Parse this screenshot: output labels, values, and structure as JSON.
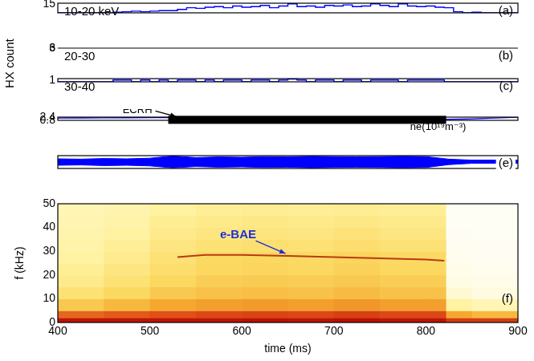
{
  "chart_data": [
    {
      "type": "line",
      "title": "10-20 keV",
      "panel_label": "(a)",
      "x": [
        400,
        410,
        420,
        430,
        440,
        450,
        460,
        470,
        480,
        490,
        500,
        510,
        520,
        530,
        540,
        550,
        560,
        570,
        580,
        590,
        600,
        610,
        620,
        630,
        640,
        650,
        660,
        670,
        680,
        690,
        700,
        710,
        720,
        730,
        740,
        750,
        760,
        770,
        780,
        790,
        800,
        810,
        820,
        830,
        840,
        850,
        860,
        870,
        880,
        890,
        900
      ],
      "series": [
        {
          "color": "#0000ff",
          "values": [
            0,
            0,
            0,
            0,
            0,
            0,
            1,
            2,
            3,
            2,
            3,
            4,
            4,
            6,
            9,
            8,
            10,
            11,
            9,
            12,
            10,
            11,
            13,
            9,
            12,
            16,
            11,
            12,
            10,
            13,
            12,
            14,
            11,
            12,
            16,
            13,
            11,
            16,
            12,
            11,
            12,
            10,
            9,
            2,
            0,
            1,
            0,
            0,
            0,
            0,
            0
          ]
        }
      ],
      "xlim": [
        400,
        900
      ],
      "ylim": [
        0,
        17
      ],
      "yticks": [
        15
      ],
      "line_style": "steps",
      "tick_labels": "y",
      "grid": false
    },
    {
      "type": "line",
      "title": "20-30",
      "panel_label": "(b)",
      "ylabel": "HX count",
      "x": [
        400,
        410,
        420,
        430,
        440,
        450,
        460,
        470,
        480,
        490,
        500,
        510,
        520,
        530,
        540,
        550,
        560,
        570,
        580,
        590,
        600,
        610,
        620,
        630,
        640,
        650,
        660,
        670,
        680,
        690,
        700,
        710,
        720,
        730,
        740,
        750,
        760,
        770,
        780,
        790,
        800,
        810,
        820,
        830,
        840,
        850,
        860,
        870,
        880,
        890,
        900
      ],
      "series": [
        {
          "color": "#0000ff",
          "values": [
            0,
            0,
            1,
            0,
            0,
            0,
            1,
            0,
            1,
            0,
            0,
            0,
            1,
            2,
            3,
            4,
            3,
            2,
            5,
            3,
            2,
            4,
            3,
            6,
            2,
            5,
            3,
            4,
            3,
            6,
            3,
            4,
            2,
            5,
            3,
            4,
            6,
            3,
            4,
            3,
            2,
            4,
            3,
            0,
            0,
            1,
            0,
            0,
            0,
            0,
            0
          ]
        }
      ],
      "xlim": [
        400,
        900
      ],
      "ylim": [
        0,
        7.5
      ],
      "yticks": [
        3,
        6
      ],
      "line_style": "steps",
      "tick_labels": "y",
      "grid": false
    },
    {
      "type": "line",
      "title": "30-40",
      "panel_label": "(c)",
      "x": [
        400,
        410,
        420,
        430,
        440,
        450,
        460,
        470,
        480,
        490,
        500,
        510,
        520,
        530,
        540,
        550,
        560,
        570,
        580,
        590,
        600,
        610,
        620,
        630,
        640,
        650,
        660,
        670,
        680,
        690,
        700,
        710,
        720,
        730,
        740,
        750,
        760,
        770,
        780,
        790,
        800,
        810,
        820,
        830,
        840,
        850,
        860,
        870,
        880,
        890,
        900
      ],
      "series": [
        {
          "color": "#0000ff",
          "values": [
            0,
            0,
            0,
            0,
            0,
            0,
            1,
            1,
            0,
            1,
            0,
            1,
            0,
            1,
            1,
            0,
            1,
            0,
            1,
            1,
            0,
            1,
            1,
            0,
            1,
            1.6,
            1,
            0,
            1,
            1,
            0,
            1,
            1,
            0,
            1,
            1,
            1,
            0,
            1,
            1,
            1,
            1,
            0,
            0,
            0,
            0,
            0,
            0,
            0,
            0,
            0
          ]
        }
      ],
      "xlim": [
        400,
        900
      ],
      "ylim": [
        0,
        1.8
      ],
      "yticks": [
        1
      ],
      "line_style": "steps",
      "tick_labels": "y",
      "grid": false
    },
    {
      "type": "line",
      "x": [
        400,
        425,
        450,
        475,
        500,
        525,
        550,
        575,
        600,
        625,
        650,
        675,
        700,
        725,
        750,
        775,
        800,
        825,
        850,
        875,
        900
      ],
      "series": [
        {
          "name": "ne(10¹⁹m⁻³)",
          "color": "#0000ff",
          "values": [
            1.95,
            2.0,
            2.05,
            2.1,
            2.15,
            2.2,
            2.12,
            2.02,
            1.92,
            1.86,
            1.8,
            1.77,
            1.74,
            1.68,
            1.6,
            1.5,
            1.4,
            1.33,
            1.55,
            1.95,
            2.35
          ]
        }
      ],
      "bar": {
        "label": "ECRH",
        "start": 520,
        "end": 822,
        "value": 1.05,
        "color": "#000000"
      },
      "xlim": [
        400,
        900
      ],
      "ylim": [
        0.8,
        2.4
      ],
      "yticks": [
        0.8,
        2.4
      ],
      "tick_labels": "y",
      "grid": false
    },
    {
      "type": "band",
      "panel_label": "(e)",
      "color": "#0000ff",
      "x": [
        400,
        425,
        450,
        475,
        500,
        525,
        550,
        575,
        600,
        625,
        650,
        675,
        700,
        725,
        750,
        775,
        800,
        825,
        850,
        875,
        900
      ],
      "upper": [
        0.5,
        0.45,
        0.55,
        0.5,
        0.6,
        0.95,
        0.7,
        0.8,
        0.75,
        0.85,
        0.8,
        0.9,
        0.85,
        0.8,
        0.85,
        0.9,
        0.85,
        0.45,
        0.3,
        0.3,
        0.3
      ],
      "lower": [
        -0.5,
        -0.45,
        -0.55,
        -0.5,
        -0.6,
        -0.9,
        -0.7,
        -0.8,
        -0.75,
        -0.85,
        -0.8,
        -0.9,
        -0.85,
        -0.8,
        -0.85,
        -0.9,
        -0.85,
        -0.4,
        -0.2,
        -0.2,
        -0.2
      ],
      "xlim": [
        400,
        900
      ],
      "ylim": [
        -1,
        1
      ],
      "tick_labels": false,
      "grid": false
    },
    {
      "type": "heatmap",
      "panel_label": "(f)",
      "xlabel": "time (ms)",
      "ylabel": "f (kHz)",
      "xlim": [
        400,
        900
      ],
      "xticks": [
        400,
        500,
        600,
        700,
        800,
        900
      ],
      "ylim": [
        0,
        50
      ],
      "yticks": [
        0,
        10,
        20,
        30,
        40,
        50
      ],
      "cells": {
        "t_edges": [
          400,
          450,
          500,
          550,
          600,
          650,
          700,
          750,
          800,
          822,
          850,
          900
        ],
        "f_edges": [
          0,
          2,
          5,
          10,
          15,
          20,
          25,
          30,
          35,
          40,
          45,
          50
        ],
        "intensity": [
          [
            0.95,
            0.75,
            0.5,
            0.4,
            0.35,
            0.32,
            0.3,
            0.28,
            0.27,
            0.26,
            0.25
          ],
          [
            0.95,
            0.78,
            0.55,
            0.45,
            0.4,
            0.37,
            0.34,
            0.32,
            0.3,
            0.28,
            0.27
          ],
          [
            0.95,
            0.8,
            0.6,
            0.5,
            0.45,
            0.42,
            0.4,
            0.37,
            0.35,
            0.33,
            0.3
          ],
          [
            0.95,
            0.82,
            0.62,
            0.52,
            0.48,
            0.45,
            0.44,
            0.4,
            0.37,
            0.35,
            0.32
          ],
          [
            0.96,
            0.83,
            0.63,
            0.53,
            0.49,
            0.46,
            0.45,
            0.41,
            0.38,
            0.36,
            0.33
          ],
          [
            0.95,
            0.82,
            0.62,
            0.52,
            0.48,
            0.45,
            0.44,
            0.4,
            0.37,
            0.35,
            0.32
          ],
          [
            0.96,
            0.84,
            0.64,
            0.54,
            0.5,
            0.47,
            0.46,
            0.42,
            0.39,
            0.36,
            0.33
          ],
          [
            0.95,
            0.82,
            0.62,
            0.52,
            0.48,
            0.45,
            0.44,
            0.4,
            0.37,
            0.35,
            0.32
          ],
          [
            0.95,
            0.82,
            0.62,
            0.52,
            0.48,
            0.45,
            0.44,
            0.4,
            0.37,
            0.35,
            0.32
          ],
          [
            0.85,
            0.6,
            0.3,
            0.18,
            0.12,
            0.1,
            0.08,
            0.07,
            0.06,
            0.05,
            0.05
          ],
          [
            0.85,
            0.55,
            0.25,
            0.15,
            0.1,
            0.08,
            0.07,
            0.06,
            0.05,
            0.05,
            0.05
          ]
        ]
      },
      "series": [
        {
          "name": "e-BAE",
          "color": "#b83a14",
          "x": [
            530,
            560,
            600,
            650,
            700,
            750,
            800,
            820
          ],
          "values": [
            27.5,
            28.5,
            28.5,
            28,
            27.5,
            27,
            26.5,
            26
          ]
        }
      ],
      "tick_labels": true,
      "grid": false
    }
  ]
}
